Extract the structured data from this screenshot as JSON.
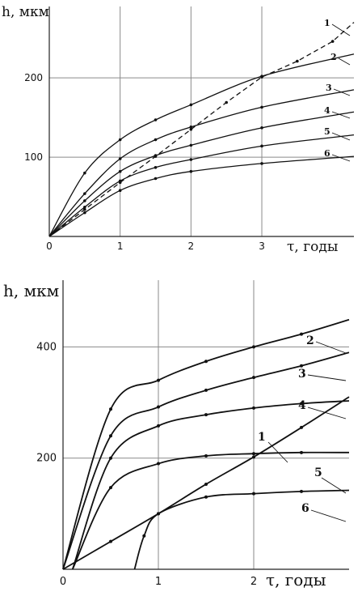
{
  "chart_data": [
    {
      "type": "line",
      "ylabel": "h, мкм",
      "xlabel": "τ, годы",
      "xlim": [
        0,
        4.3
      ],
      "ylim": [
        0,
        290
      ],
      "xticks": [
        "0",
        "1",
        "2",
        "3"
      ],
      "yticks": [
        "100",
        "200"
      ],
      "grid": true,
      "series": [
        {
          "name": "1",
          "dashed": true,
          "x": [
            0,
            0.5,
            1,
            1.5,
            2,
            2.5,
            3,
            3.5,
            4,
            4.3
          ],
          "y": [
            0,
            34,
            68,
            101,
            135,
            169,
            201,
            221,
            246,
            270
          ]
        },
        {
          "name": "2",
          "x": [
            0,
            0.5,
            1,
            1.5,
            2,
            3,
            4.3
          ],
          "y": [
            0,
            80,
            122,
            147,
            166,
            202,
            230
          ]
        },
        {
          "name": "3",
          "x": [
            0,
            0.5,
            1,
            1.5,
            2,
            3,
            4.3
          ],
          "y": [
            0,
            54,
            98,
            122,
            138,
            163,
            185
          ]
        },
        {
          "name": "4",
          "x": [
            0,
            0.5,
            1,
            1.5,
            2,
            3,
            4.3
          ],
          "y": [
            0,
            45,
            82,
            102,
            115,
            137,
            157
          ]
        },
        {
          "name": "5",
          "x": [
            0,
            0.5,
            1,
            1.5,
            2,
            3,
            4.3
          ],
          "y": [
            0,
            37,
            70,
            87,
            97,
            114,
            128
          ]
        },
        {
          "name": "6",
          "x": [
            0,
            0.5,
            1,
            1.5,
            2,
            3,
            4.3
          ],
          "y": [
            0,
            30,
            58,
            73,
            82,
            92,
            101
          ]
        }
      ]
    },
    {
      "type": "line",
      "ylabel": "h, мкм",
      "xlabel": "τ, годы",
      "xlim": [
        0,
        3.0
      ],
      "ylim": [
        0,
        520
      ],
      "xticks": [
        "0",
        "1",
        "2"
      ],
      "yticks": [
        "200",
        "400"
      ],
      "grid": true,
      "series": [
        {
          "name": "1",
          "x": [
            0,
            0.5,
            1,
            1.5,
            2,
            2.5,
            3.0
          ],
          "y": [
            0,
            50,
            100,
            153,
            202,
            255,
            310
          ]
        },
        {
          "name": "2",
          "x": [
            0,
            0.5,
            1,
            1.5,
            2,
            2.5,
            3.0
          ],
          "y": [
            0,
            288,
            340,
            374,
            400,
            423,
            449
          ]
        },
        {
          "name": "3",
          "x": [
            0,
            0.5,
            1,
            1.5,
            2,
            2.5,
            3.0
          ],
          "y": [
            0,
            240,
            292,
            322,
            345,
            366,
            390
          ]
        },
        {
          "name": "4",
          "x": [
            0.1,
            0.5,
            1,
            1.5,
            2,
            2.5,
            3.0
          ],
          "y": [
            0,
            200,
            258,
            278,
            290,
            298,
            303
          ]
        },
        {
          "name": "5",
          "x": [
            0.1,
            0.5,
            1,
            1.5,
            2,
            2.5,
            3.0
          ],
          "y": [
            0,
            147,
            190,
            204,
            208,
            210,
            210
          ]
        },
        {
          "name": "6",
          "x": [
            0.75,
            0.85,
            1,
            1.5,
            2,
            2.5,
            3.0
          ],
          "y": [
            0,
            60,
            100,
            130,
            136,
            140,
            142
          ]
        }
      ]
    }
  ]
}
